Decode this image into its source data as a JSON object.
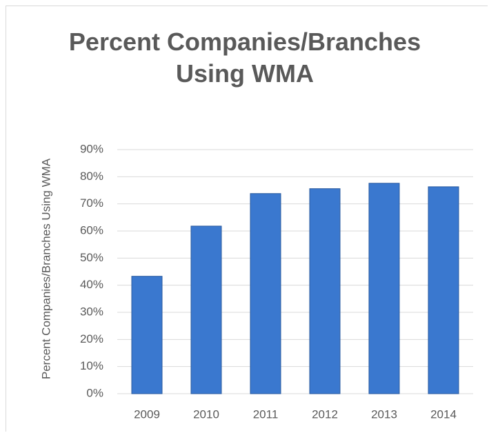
{
  "chart_data": {
    "type": "bar",
    "title": "Percent Companies/Branches Using WMA",
    "y_label": "Percent Companies/Branches Using WMA",
    "categories": [
      "2009",
      "2010",
      "2011",
      "2012",
      "2013",
      "2014"
    ],
    "values": [
      43.3,
      61.8,
      73.8,
      75.6,
      77.6,
      76.3
    ],
    "color": "#3a78cf",
    "ylim": [
      0,
      90
    ],
    "yticks": [
      {
        "value": 0,
        "label": "0%"
      },
      {
        "value": 10,
        "label": "10%"
      },
      {
        "value": 20,
        "label": "20%"
      },
      {
        "value": 30,
        "label": "30%"
      },
      {
        "value": 40,
        "label": "40%"
      },
      {
        "value": 50,
        "label": "50%"
      },
      {
        "value": 60,
        "label": "60%"
      },
      {
        "value": 70,
        "label": "70%"
      },
      {
        "value": 80,
        "label": "80%"
      },
      {
        "value": 90,
        "label": "90%"
      }
    ],
    "grid": true
  }
}
